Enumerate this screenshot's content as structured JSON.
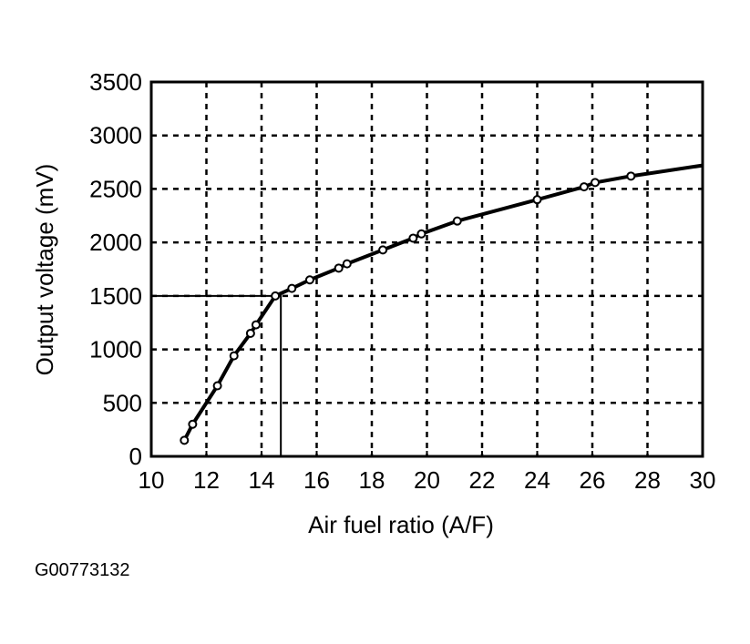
{
  "chart_data": {
    "type": "line",
    "title": "",
    "xlabel": "Air fuel ratio (A/F)",
    "ylabel": "Output voltage (mV)",
    "xlim": [
      10,
      30
    ],
    "ylim": [
      0,
      3500
    ],
    "xticks": [
      10,
      12,
      14,
      16,
      18,
      20,
      22,
      24,
      26,
      28,
      30
    ],
    "yticks": [
      0,
      500,
      1000,
      1500,
      2000,
      2500,
      3000,
      3500
    ],
    "grid": true,
    "series": [
      {
        "x": [
          11.2,
          11.5,
          12.4,
          13.0,
          13.6,
          13.8,
          14.5,
          15.1,
          15.75,
          16.8,
          17.1,
          18.4,
          19.5,
          19.8,
          21.1,
          24.0,
          25.7,
          26.1,
          27.4,
          30
        ],
        "y": [
          150,
          300,
          660,
          940,
          1150,
          1230,
          1500,
          1570,
          1650,
          1760,
          1800,
          1930,
          2040,
          2080,
          2200,
          2400,
          2520,
          2560,
          2620,
          2720
        ],
        "markers": [
          true,
          true,
          true,
          true,
          true,
          true,
          true,
          true,
          true,
          true,
          true,
          true,
          true,
          true,
          true,
          true,
          true,
          true,
          true,
          false
        ]
      }
    ],
    "reference": {
      "x": 14.7,
      "y": 1500
    },
    "color": "#000000"
  },
  "figure_id": "G00773132"
}
